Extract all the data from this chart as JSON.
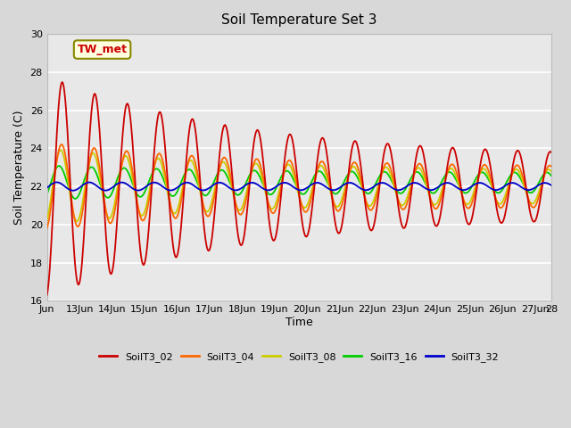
{
  "title": "Soil Temperature Set 3",
  "xlabel": "Time",
  "ylabel": "Soil Temperature (C)",
  "ylim": [
    16,
    30
  ],
  "bg_color": "#e8e8e8",
  "fig_bg": "#d8d8d8",
  "series_colors": {
    "SoilT3_02": "#cc0000",
    "SoilT3_04": "#ff6600",
    "SoilT3_08": "#cccc00",
    "SoilT3_16": "#00cc00",
    "SoilT3_32": "#0000cc"
  },
  "tick_positions": [
    0,
    1,
    2,
    3,
    4,
    5,
    6,
    7,
    8,
    9,
    10,
    11,
    12,
    13,
    14,
    15,
    15.5
  ],
  "tick_labels": [
    "Jun",
    "13Jun",
    "14Jun",
    "15Jun",
    "16Jun",
    "17Jun",
    "18Jun",
    "19Jun",
    "20Jun",
    "21Jun",
    "22Jun",
    "23Jun",
    "24Jun",
    "25Jun",
    "26Jun",
    "27Jun",
    "28"
  ],
  "legend_labels": [
    "SoilT3_02",
    "SoilT3_04",
    "SoilT3_08",
    "SoilT3_16",
    "SoilT3_32"
  ],
  "annotation_text": "TW_met"
}
